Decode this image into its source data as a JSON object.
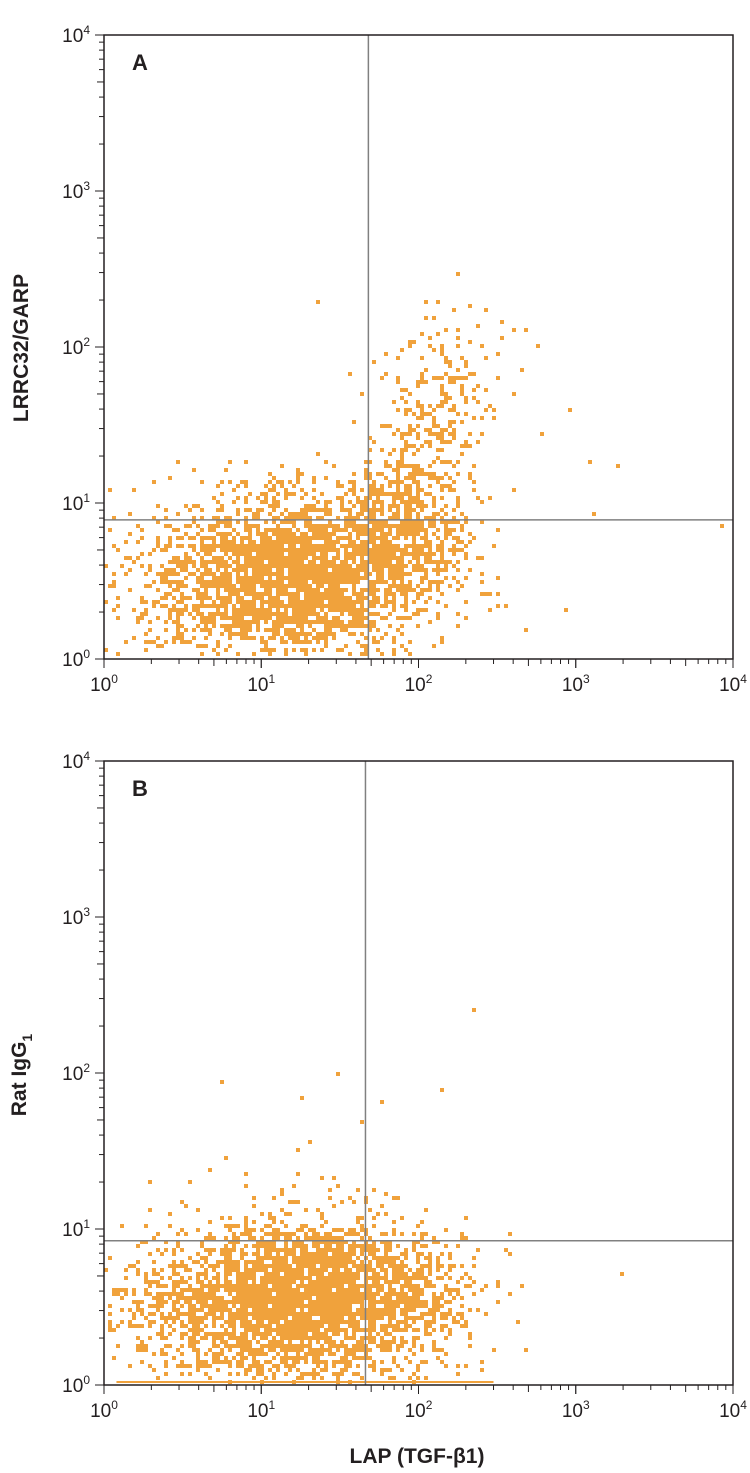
{
  "colors": {
    "dots": "#f0a23c",
    "frame": "#231f20",
    "gate": "#808080",
    "background": "#ffffff"
  },
  "chart_data": [
    {
      "type": "scatter",
      "panel_label": "A",
      "xlabel": "LAP (TGF-β1)",
      "ylabel": "LRRC32/GARP",
      "xscale": "log",
      "yscale": "log",
      "xlim": [
        1,
        10000
      ],
      "ylim": [
        1,
        10000
      ],
      "x_ticks": [
        {
          "base": "10",
          "exp": "0"
        },
        {
          "base": "10",
          "exp": "1"
        },
        {
          "base": "10",
          "exp": "2"
        },
        {
          "base": "10",
          "exp": "3"
        },
        {
          "base": "10",
          "exp": "4"
        }
      ],
      "y_ticks": [
        {
          "base": "10",
          "exp": "0"
        },
        {
          "base": "10",
          "exp": "1"
        },
        {
          "base": "10",
          "exp": "2"
        },
        {
          "base": "10",
          "exp": "3"
        },
        {
          "base": "10",
          "exp": "4"
        }
      ],
      "quadrant_gate": {
        "x": 48,
        "y": 7.8
      },
      "grid": false,
      "legend": "none",
      "populations": [
        {
          "center": [
            17,
            3.5
          ],
          "spread": [
            0.42,
            0.27
          ],
          "count": 2600
        },
        {
          "center": [
            10,
            3.2
          ],
          "spread": [
            0.35,
            0.25
          ],
          "count": 350
        },
        {
          "center": [
            4,
            2.9
          ],
          "spread": [
            0.3,
            0.24
          ],
          "count": 200
        },
        {
          "center": [
            75,
            5.5
          ],
          "spread": [
            0.22,
            0.22
          ],
          "count": 500
        },
        {
          "center": [
            95,
            12
          ],
          "spread": [
            0.2,
            0.25
          ],
          "count": 300
        },
        {
          "center": [
            130,
            35
          ],
          "spread": [
            0.18,
            0.24
          ],
          "count": 160
        },
        {
          "center": [
            180,
            80
          ],
          "spread": [
            0.17,
            0.2
          ],
          "count": 60
        }
      ],
      "outliers": [
        [
          23,
          200
        ],
        [
          180,
          300
        ],
        [
          270,
          170
        ],
        [
          900,
          40
        ],
        [
          1300,
          8.5
        ],
        [
          1900,
          17
        ],
        [
          8500,
          7.2
        ],
        [
          600,
          28
        ],
        [
          400,
          12
        ],
        [
          350,
          2.2
        ],
        [
          1200,
          18
        ],
        [
          480,
          130
        ],
        [
          560,
          100
        ],
        [
          320,
          90
        ]
      ]
    },
    {
      "type": "scatter",
      "panel_label": "B",
      "xlabel": "LAP (TGF-β1)",
      "ylabel": "Rat IgG",
      "ylabel_subscript": "1",
      "xscale": "log",
      "yscale": "log",
      "xlim": [
        1,
        10000
      ],
      "ylim": [
        1,
        10000
      ],
      "x_ticks": [
        {
          "base": "10",
          "exp": "0"
        },
        {
          "base": "10",
          "exp": "1"
        },
        {
          "base": "10",
          "exp": "2"
        },
        {
          "base": "10",
          "exp": "3"
        },
        {
          "base": "10",
          "exp": "4"
        }
      ],
      "y_ticks": [
        {
          "base": "10",
          "exp": "0"
        },
        {
          "base": "10",
          "exp": "1"
        },
        {
          "base": "10",
          "exp": "2"
        },
        {
          "base": "10",
          "exp": "3"
        },
        {
          "base": "10",
          "exp": "4"
        }
      ],
      "quadrant_gate": {
        "x": 46,
        "y": 8.4
      },
      "grid": false,
      "legend": "none",
      "populations": [
        {
          "center": [
            15,
            3.4
          ],
          "spread": [
            0.42,
            0.26
          ],
          "count": 2800
        },
        {
          "center": [
            35,
            3.8
          ],
          "spread": [
            0.3,
            0.24
          ],
          "count": 700
        },
        {
          "center": [
            100,
            3.6
          ],
          "spread": [
            0.2,
            0.22
          ],
          "count": 300
        },
        {
          "center": [
            3,
            3.2
          ],
          "spread": [
            0.25,
            0.22
          ],
          "count": 200
        }
      ],
      "baseline_x_range": [
        1.2,
        300
      ],
      "outliers": [
        [
          220,
          250
        ],
        [
          30,
          100
        ],
        [
          5.5,
          87
        ],
        [
          140,
          78
        ],
        [
          18,
          68
        ],
        [
          60,
          65
        ],
        [
          45,
          48
        ],
        [
          20,
          36
        ],
        [
          3.5,
          20
        ],
        [
          4.8,
          24
        ],
        [
          2,
          13
        ],
        [
          380,
          7
        ],
        [
          2000,
          5.3
        ],
        [
          430,
          2.5
        ],
        [
          480,
          1.7
        ]
      ]
    }
  ]
}
